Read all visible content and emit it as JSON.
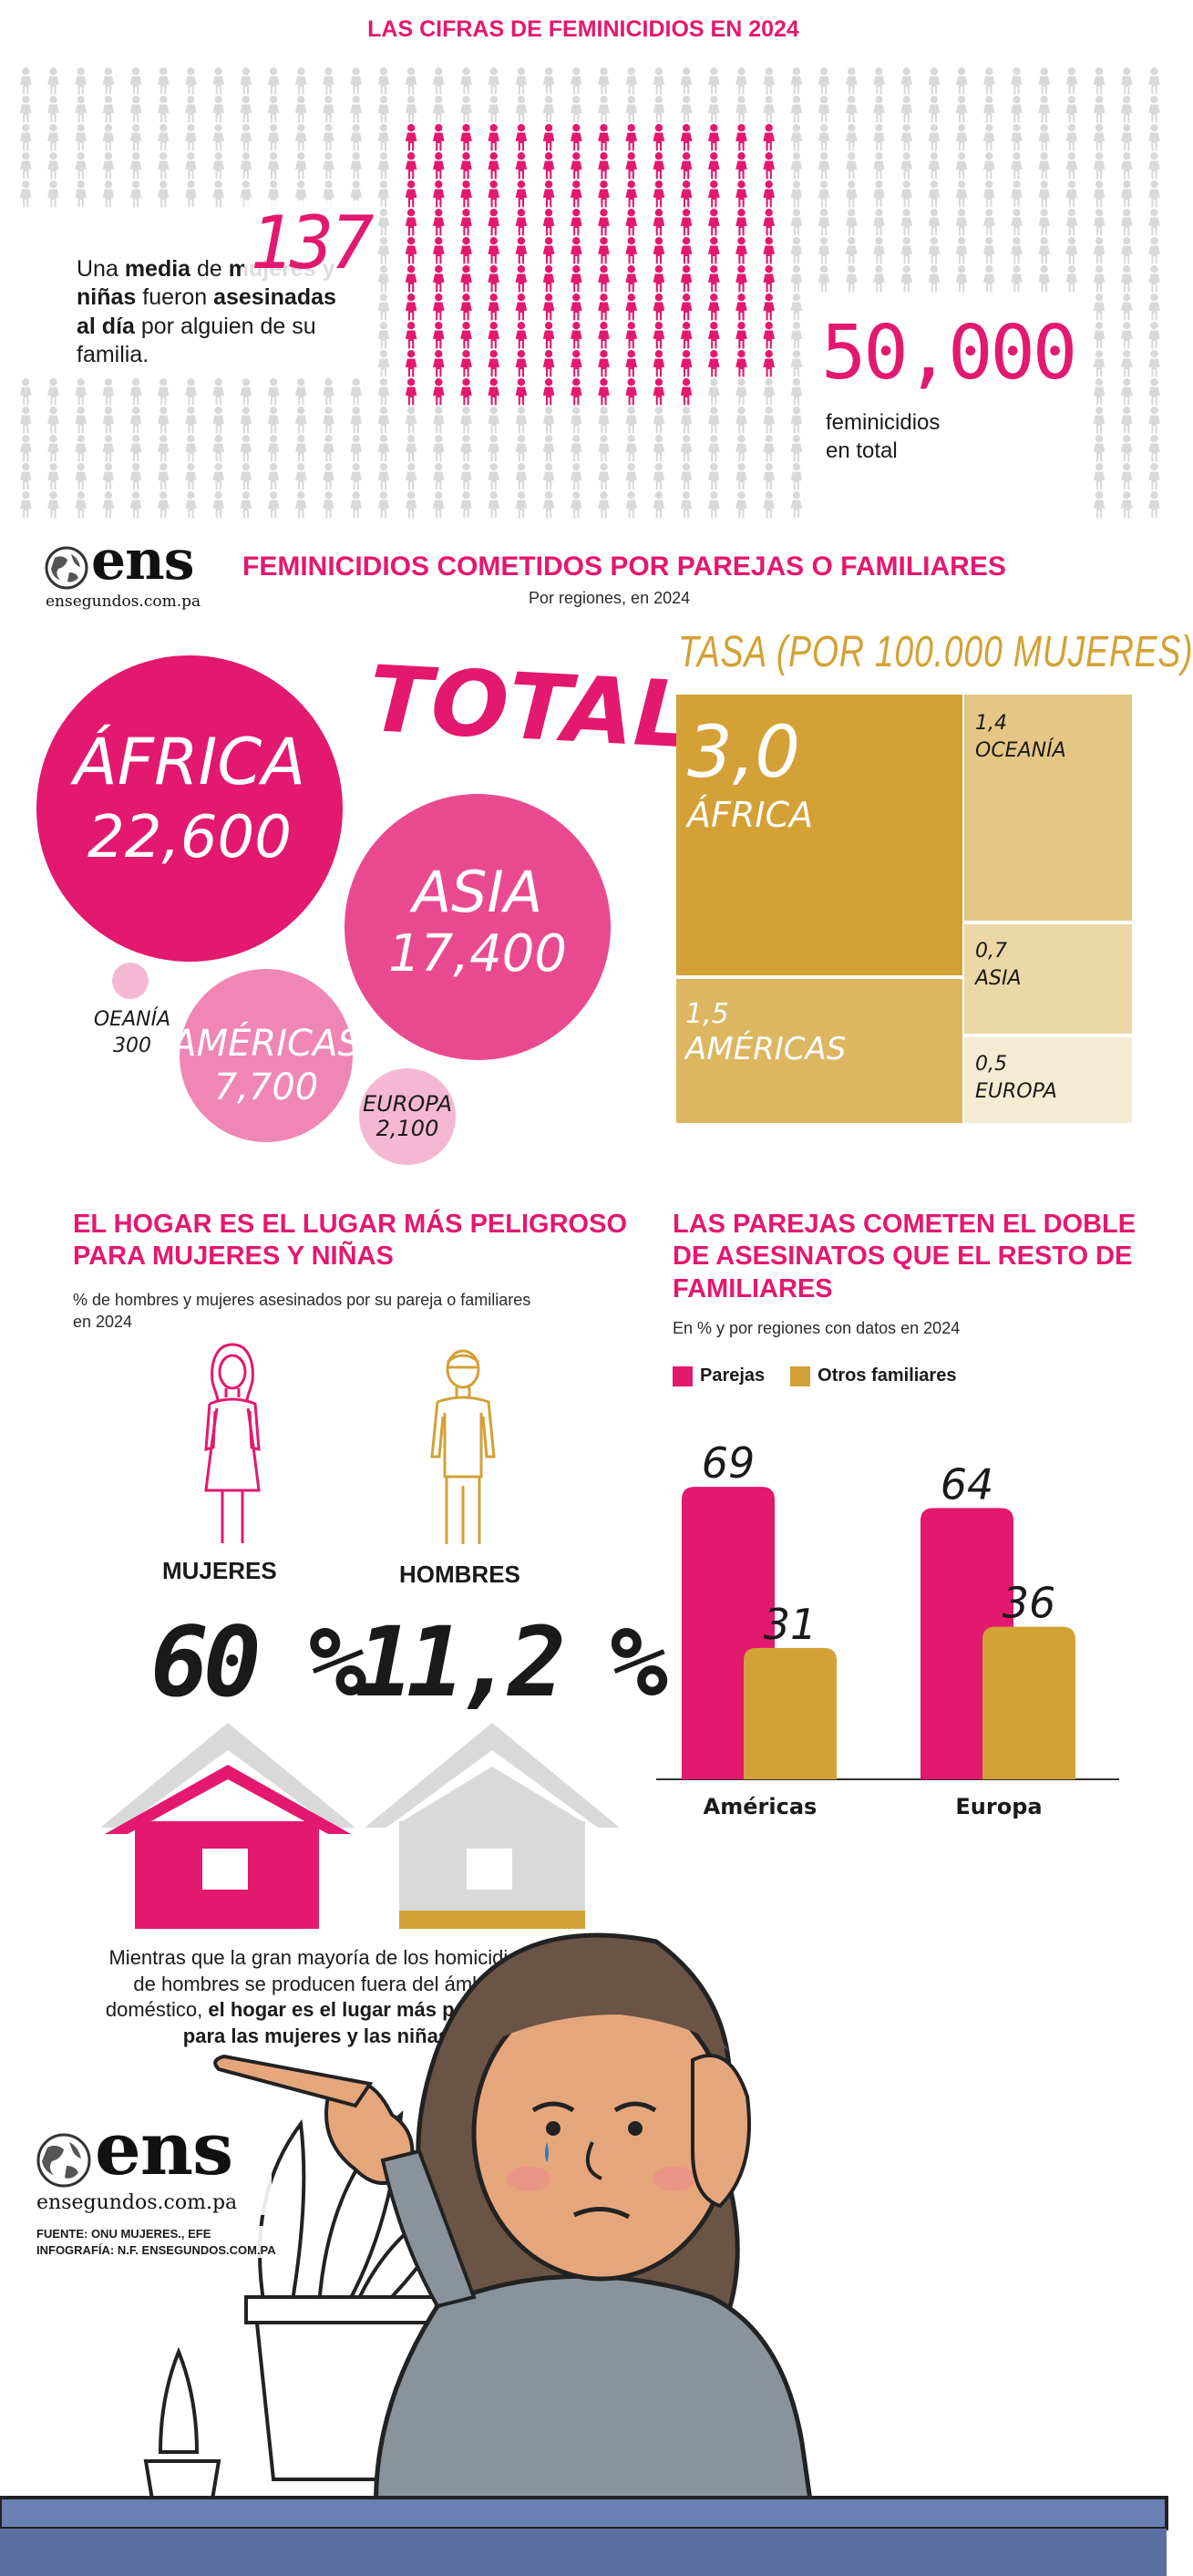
{
  "colors": {
    "pink": "#e3186f",
    "gold": "#d3a135",
    "grey": "#d9d9d9"
  },
  "header": {
    "title": "LAS CIFRAS DE FEMINICIDIOS EN 2024"
  },
  "daily": {
    "number": "137",
    "text_pre": "Una ",
    "text_b1": "media",
    "text_mid1": " de ",
    "text_b2": "mujeres y niñas",
    "text_mid2": " fueron ",
    "text_b3": "asesinadas al día",
    "text_post": " por alguien de su familia.",
    "highlighted_figures": 137
  },
  "total": {
    "number": "50,000",
    "label_line1": "feminicidios",
    "label_line2": "en total"
  },
  "logo": {
    "word": "ens",
    "url": "ensegundos.com.pa"
  },
  "regions": {
    "title": "FEMINICIDIOS COMETIDOS POR PAREJAS O FAMILIARES",
    "subtitle": "Por regiones, en 2024",
    "total_label": "TOTAL",
    "bubbles": [
      {
        "name": "ÁFRICA",
        "value": "22,600",
        "amount": 22600
      },
      {
        "name": "ASIA",
        "value": "17,400",
        "amount": 17400
      },
      {
        "name": "AMÉRICAS",
        "value": "7,700",
        "amount": 7700
      },
      {
        "name": "EUROPA",
        "value": "2,100",
        "amount": 2100
      },
      {
        "name": "OEANÍA",
        "value": "300",
        "amount": 300
      }
    ],
    "rate_title": "TASA (POR 100.000 MUJERES)",
    "rates": [
      {
        "value": "3,0",
        "name": "ÁFRICA",
        "rate": 3.0
      },
      {
        "value": "1,4",
        "name": "OCEANÍA",
        "rate": 1.4
      },
      {
        "value": "0,7",
        "name": "ASIA",
        "rate": 0.7
      },
      {
        "value": "1,5",
        "name": "AMÉRICAS",
        "rate": 1.5
      },
      {
        "value": "0,5",
        "name": "EUROPA",
        "rate": 0.5
      }
    ]
  },
  "home": {
    "title_l1": "EL HOGAR ES EL LUGAR MÁS PELIGROSO",
    "title_l2": "PARA MUJERES Y NIÑAS",
    "subtitle_l1": "% de hombres y mujeres asesinados por su pareja o familiares",
    "subtitle_l2": "en 2024",
    "women_label": "MUJERES",
    "men_label": "HOMBRES",
    "women_value": "60 %",
    "men_value": "11,2 %",
    "women_pct": 60,
    "men_pct": 11.2,
    "note_l1": "Mientras que la gran mayoría de los homicidios",
    "note_l2": "de hombres se producen fuera del ámbito",
    "note_l3a": "doméstico, ",
    "note_l3b": "el hogar es el lugar más peligroso",
    "note_l4": "para las mujeres y las niñas."
  },
  "chart_data": {
    "type": "bar",
    "title": "LAS PAREJAS COMETEN EL DOBLE DE ASESINATOS QUE EL RESTO DE FAMILIARES",
    "subtitle": "En % y por regiones con datos en 2024",
    "categories": [
      "Américas",
      "Europa"
    ],
    "series": [
      {
        "name": "Parejas",
        "values": [
          69,
          64
        ],
        "color": "#e3186f"
      },
      {
        "name": "Otros familiares",
        "values": [
          31,
          36
        ],
        "color": "#d3a135"
      }
    ],
    "ylim": [
      0,
      80
    ],
    "grid": false,
    "legend": "top-left"
  },
  "partner_chart": {
    "title_l1": "LAS PAREJAS COMETEN EL DOBLE",
    "title_l2": "DE ASESINATOS QUE EL RESTO DE",
    "title_l3": "FAMILIARES"
  },
  "credits": {
    "source": "FUENTE:  ONU MUJERES., EFE",
    "infographic": "INFOGRAFÍA: N.F. ENSEGUNDOS.COM.PA"
  }
}
